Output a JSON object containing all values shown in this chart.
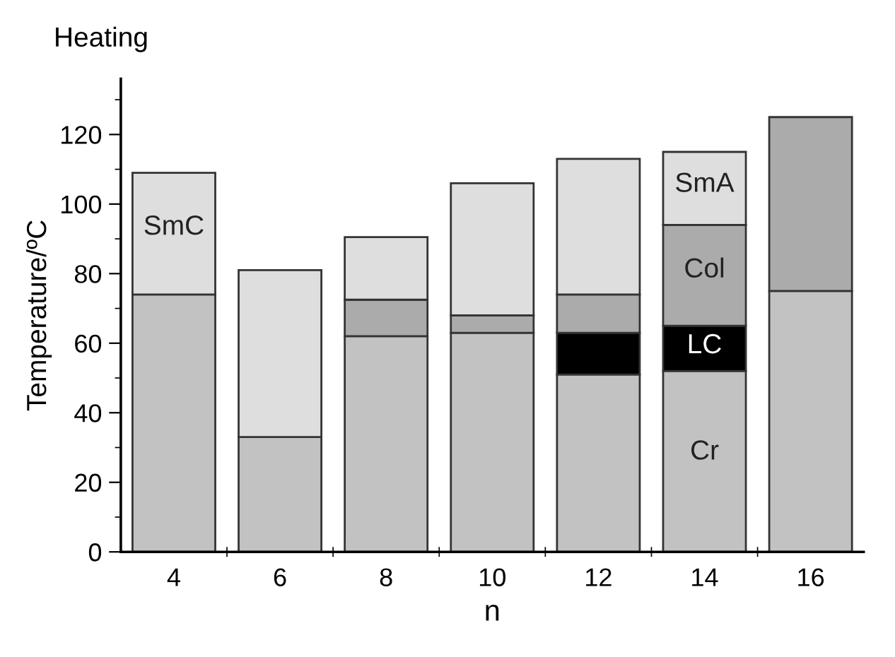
{
  "chart_data": {
    "type": "bar",
    "stacked": true,
    "title": "Heating",
    "xlabel": "n",
    "ylabel": "Temperature/ºC",
    "categories": [
      "4",
      "6",
      "8",
      "10",
      "12",
      "14",
      "16"
    ],
    "series": [
      {
        "name": "Cr",
        "color": "#c2c2c2",
        "values": [
          74,
          33,
          62,
          63,
          51,
          52,
          75
        ]
      },
      {
        "name": "LC",
        "color": "#000000",
        "values": [
          null,
          null,
          null,
          null,
          12,
          13,
          null
        ]
      },
      {
        "name": "Col",
        "color": "#ababab",
        "values": [
          null,
          null,
          10.5,
          5,
          11,
          29,
          50
        ]
      },
      {
        "name": "SmC",
        "color": "#dedede",
        "values": [
          35,
          48,
          null,
          null,
          null,
          null,
          null
        ]
      },
      {
        "name": "SmA",
        "color": "#dedede",
        "values": [
          null,
          null,
          18,
          38,
          39,
          21,
          null
        ]
      }
    ],
    "ylim": [
      0,
      136
    ],
    "yticks": [
      0,
      20,
      40,
      60,
      80,
      100,
      120
    ],
    "grid": false,
    "legend": false
  }
}
